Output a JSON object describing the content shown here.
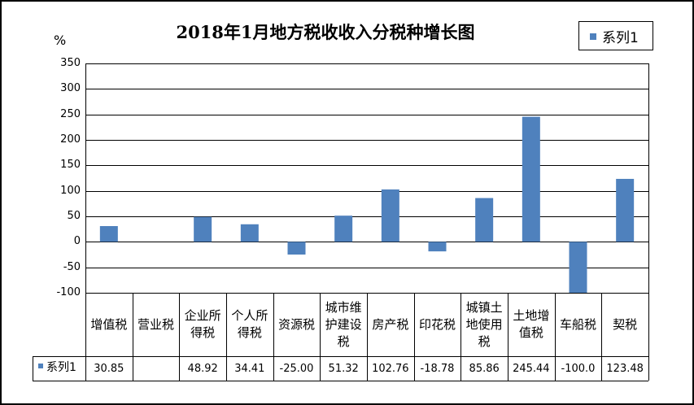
{
  "chart_data": {
    "type": "bar",
    "title": "2018年1月地方税收收入分税种增长图",
    "ylabel": "%",
    "ylim": [
      -100,
      350
    ],
    "yticks": [
      350,
      300,
      250,
      200,
      150,
      100,
      50,
      0,
      -50,
      -100
    ],
    "grid": true,
    "legend_position": "top-right",
    "categories": [
      "增值税",
      "营业税",
      "企业所得税",
      "个人所得税",
      "资源税",
      "城市维护建设税",
      "房产税",
      "印花税",
      "城镇土地使用税",
      "土地增值税",
      "车船税",
      "契税"
    ],
    "category_lines": [
      [
        "增值税"
      ],
      [
        "营业税"
      ],
      [
        "企业所",
        "得税"
      ],
      [
        "个人所",
        "得税"
      ],
      [
        "资源税"
      ],
      [
        "城市维",
        "护建设",
        "税"
      ],
      [
        "房产税"
      ],
      [
        "印花税"
      ],
      [
        "城镇土",
        "地使用",
        "税"
      ],
      [
        "土地增",
        "值税"
      ],
      [
        "车船税"
      ],
      [
        "契税"
      ]
    ],
    "series": [
      {
        "name": "系列1",
        "color": "#4f81bd",
        "values": [
          30.85,
          null,
          48.92,
          34.41,
          -25.0,
          51.32,
          102.76,
          -18.78,
          85.86,
          245.44,
          -100.0,
          123.48
        ],
        "labels": [
          "30.85",
          "",
          "48.92",
          "34.41",
          "-25.00",
          "51.32",
          "102.76",
          "-18.78",
          "85.86",
          "245.44",
          "-100.0",
          "123.48"
        ]
      }
    ],
    "data_table": true
  }
}
